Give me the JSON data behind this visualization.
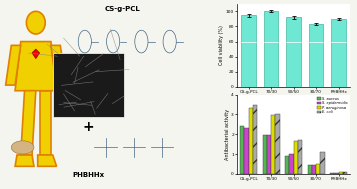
{
  "cell_viability": {
    "categories": [
      "CS-g-PCL",
      "70/30",
      "50/50",
      "30/70",
      "PHBHHx"
    ],
    "values": [
      95,
      100,
      92,
      83,
      90
    ],
    "errors": [
      2,
      1.5,
      1.5,
      1,
      1.5
    ],
    "bar_color": "#6ee8d2",
    "ylabel": "Cell viability (%)",
    "ylim": [
      0,
      110
    ],
    "yticks": [
      0,
      20,
      40,
      60,
      80,
      100
    ]
  },
  "antibacterial": {
    "categories": [
      "CS-g-PCL",
      "70/30",
      "50/50",
      "30/70",
      "PHBHHx"
    ],
    "s_aureus": [
      2.4,
      1.95,
      0.9,
      0.45,
      0.05
    ],
    "s_epidermidis": [
      2.3,
      1.95,
      1.0,
      0.45,
      0.05
    ],
    "p_aeruginosa": [
      3.3,
      2.95,
      1.65,
      0.5,
      0.1
    ],
    "e_coli": [
      3.45,
      3.0,
      1.7,
      1.1,
      0.07
    ],
    "colors": [
      "#55b555",
      "#cc44cc",
      "#dddd00",
      "#aaaaaa"
    ],
    "hatches": [
      "",
      "",
      "",
      "//"
    ],
    "ylabel": "Antibacterial activity",
    "ylim": [
      0,
      4
    ],
    "yticks": [
      0,
      1,
      2,
      3,
      4
    ],
    "legend_labels": [
      "S. aureus",
      "S. epidermidis",
      "P. aeruginosa",
      "E. coli"
    ]
  },
  "background_color": "#f5f5f0",
  "left_panel_color": "#f5e8c8",
  "human_color": "#f0d000",
  "human_edge_color": "#e08000"
}
